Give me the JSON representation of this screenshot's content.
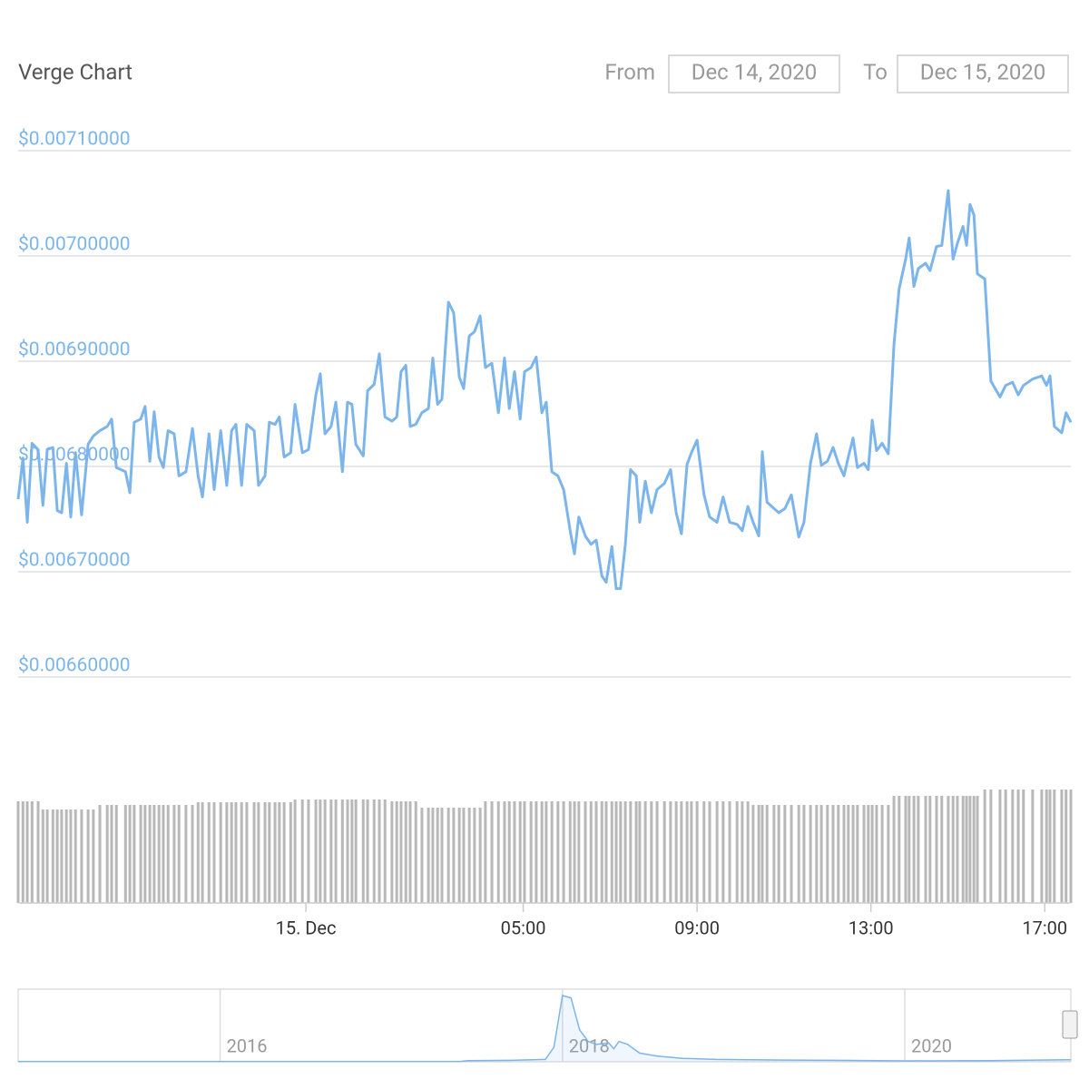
{
  "header": {
    "from_label": "From",
    "from_value": "Dec 14, 2020",
    "to_label": "To",
    "to_value": "Dec 15, 2020"
  },
  "chart_data": [
    {
      "type": "line",
      "title": "Verge Chart",
      "color": "#7cb5ec",
      "volume_color": "#b8b8b8",
      "grid": true,
      "x": [
        -6.62,
        -6.51,
        -6.41,
        -6.3,
        -6.16,
        -6.05,
        -5.95,
        -5.82,
        -5.72,
        -5.62,
        -5.51,
        -5.41,
        -5.3,
        -5.16,
        -5.01,
        -4.89,
        -4.74,
        -4.57,
        -4.47,
        -4.36,
        -4.15,
        -4.05,
        -3.95,
        -3.8,
        -3.7,
        -3.59,
        -3.49,
        -3.38,
        -3.28,
        -3.17,
        -3.03,
        -2.92,
        -2.76,
        -2.61,
        -2.48,
        -2.38,
        -2.23,
        -2.11,
        -1.96,
        -1.82,
        -1.71,
        -1.61,
        -1.48,
        -1.36,
        -1.19,
        -1.09,
        -0.94,
        -0.84,
        -0.71,
        -0.61,
        -0.5,
        -0.35,
        -0.25,
        -0.08,
        0.06,
        0.23,
        0.33,
        0.44,
        0.58,
        0.69,
        0.84,
        0.96,
        1.06,
        1.15,
        1.32,
        1.42,
        1.57,
        1.69,
        1.82,
        1.98,
        2.09,
        2.19,
        2.3,
        2.4,
        2.53,
        2.67,
        2.82,
        2.92,
        3.03,
        3.13,
        3.28,
        3.4,
        3.53,
        3.63,
        3.76,
        3.88,
        4.01,
        4.13,
        4.28,
        4.43,
        4.57,
        4.68,
        4.8,
        4.93,
        5.03,
        5.18,
        5.3,
        5.43,
        5.53,
        5.66,
        5.8,
        5.93,
        6.08,
        6.18,
        6.28,
        6.43,
        6.56,
        6.68,
        6.81,
        6.91,
        7.04,
        7.14,
        7.24,
        7.35,
        7.47,
        7.6,
        7.68,
        7.81,
        7.95,
        8.08,
        8.25,
        8.39,
        8.52,
        8.64,
        8.77,
        8.87,
        9.0,
        9.16,
        9.29,
        9.46,
        9.6,
        9.75,
        9.92,
        10.04,
        10.17,
        10.29,
        10.42,
        10.5,
        10.61,
        10.77,
        10.88,
        11.02,
        11.17,
        11.34,
        11.46,
        11.61,
        11.75,
        11.86,
        12.0,
        12.13,
        12.25,
        12.38,
        12.48,
        12.59,
        12.69,
        12.84,
        12.94,
        13.03,
        13.13,
        13.26,
        13.4,
        13.53,
        13.65,
        13.8,
        13.88,
        13.99,
        14.09,
        14.26,
        14.36,
        14.51,
        14.63,
        14.78,
        14.89,
        14.99,
        15.12,
        15.2,
        15.28,
        15.37,
        15.45,
        15.62,
        15.76,
        15.97,
        16.1,
        16.26,
        16.39,
        16.51,
        16.72,
        16.93,
        17.04,
        17.12,
        17.22,
        17.39,
        17.49,
        17.6
      ],
      "values": [
        0.006769,
        0.006808,
        0.006747,
        0.006822,
        0.006816,
        0.006763,
        0.006816,
        0.006818,
        0.006758,
        0.006756,
        0.006803,
        0.006752,
        0.006813,
        0.006754,
        0.006821,
        0.006829,
        0.006834,
        0.006838,
        0.006845,
        0.006799,
        0.006795,
        0.006775,
        0.006842,
        0.006845,
        0.006857,
        0.006805,
        0.006852,
        0.006809,
        0.006799,
        0.006834,
        0.006831,
        0.006791,
        0.006795,
        0.006836,
        0.006791,
        0.006771,
        0.006831,
        0.006778,
        0.006834,
        0.006782,
        0.006834,
        0.00684,
        0.006782,
        0.00684,
        0.006834,
        0.006782,
        0.006791,
        0.006842,
        0.00684,
        0.006847,
        0.006809,
        0.006813,
        0.006859,
        0.006813,
        0.006816,
        0.006868,
        0.006888,
        0.006831,
        0.006838,
        0.006861,
        0.006795,
        0.006861,
        0.006859,
        0.006821,
        0.00681,
        0.006872,
        0.006878,
        0.006907,
        0.006847,
        0.006843,
        0.006847,
        0.00689,
        0.006896,
        0.006838,
        0.00684,
        0.006851,
        0.006855,
        0.006903,
        0.006859,
        0.006864,
        0.006956,
        0.006946,
        0.006885,
        0.006874,
        0.006924,
        0.006928,
        0.006943,
        0.006894,
        0.006898,
        0.006851,
        0.006903,
        0.006855,
        0.00689,
        0.006845,
        0.00689,
        0.006894,
        0.006904,
        0.006851,
        0.006861,
        0.006795,
        0.006791,
        0.006778,
        0.006739,
        0.006717,
        0.006752,
        0.006734,
        0.006726,
        0.00673,
        0.006696,
        0.00669,
        0.006724,
        0.006684,
        0.006684,
        0.006726,
        0.006797,
        0.006791,
        0.006747,
        0.006786,
        0.006756,
        0.006778,
        0.006784,
        0.006797,
        0.006756,
        0.006736,
        0.006802,
        0.006813,
        0.006825,
        0.006773,
        0.006752,
        0.006747,
        0.006771,
        0.006747,
        0.006745,
        0.006739,
        0.006762,
        0.006747,
        0.006734,
        0.006814,
        0.006766,
        0.00676,
        0.006756,
        0.00676,
        0.006773,
        0.006733,
        0.006747,
        0.006803,
        0.006831,
        0.006801,
        0.006805,
        0.006818,
        0.006803,
        0.006791,
        0.006809,
        0.006827,
        0.006799,
        0.006803,
        0.006797,
        0.006844,
        0.006815,
        0.006822,
        0.006812,
        0.006916,
        0.006969,
        0.006997,
        0.007017,
        0.006971,
        0.006988,
        0.006993,
        0.006986,
        0.007009,
        0.00701,
        0.007062,
        0.006997,
        0.007012,
        0.007028,
        0.00701,
        0.007049,
        0.007039,
        0.006983,
        0.006978,
        0.006881,
        0.006866,
        0.006877,
        0.00688,
        0.006868,
        0.006877,
        0.006883,
        0.006886,
        0.006877,
        0.006886,
        0.006838,
        0.006832,
        0.006851,
        0.006842
      ],
      "volume": [
        112,
        112,
        112,
        112,
        112,
        103,
        103,
        103,
        103,
        103,
        103,
        103,
        103,
        103,
        103,
        103,
        108,
        108,
        108,
        108,
        108,
        108,
        108,
        108,
        108,
        108,
        108,
        108,
        108,
        108,
        108,
        108,
        108,
        108,
        111,
        111,
        111,
        111,
        111,
        111,
        111,
        111,
        111,
        111,
        111,
        111,
        111,
        111,
        111,
        111,
        111,
        111,
        114,
        114,
        114,
        114,
        114,
        114,
        114,
        114,
        114,
        114,
        114,
        114,
        114,
        114,
        114,
        114,
        114,
        112,
        112,
        112,
        112,
        112,
        112,
        105,
        105,
        105,
        105,
        105,
        105,
        105,
        105,
        105,
        105,
        105,
        105,
        112,
        112,
        112,
        112,
        112,
        112,
        112,
        112,
        112,
        112,
        112,
        112,
        112,
        112,
        112,
        112,
        112,
        112,
        112,
        112,
        112,
        112,
        112,
        112,
        112,
        112,
        112,
        112,
        112,
        112,
        112,
        112,
        112,
        112,
        112,
        112,
        112,
        112,
        112,
        112,
        112,
        112,
        112,
        112,
        112,
        112,
        112,
        112,
        108,
        108,
        108,
        108,
        108,
        108,
        108,
        108,
        108,
        108,
        108,
        108,
        108,
        108,
        108,
        108,
        108,
        108,
        108,
        108,
        108,
        108,
        108,
        108,
        108,
        108,
        118,
        118,
        118,
        118,
        118,
        118,
        118,
        118,
        118,
        118,
        118,
        118,
        118,
        118,
        118,
        118,
        118,
        118,
        125,
        125,
        125,
        125,
        125,
        125,
        125,
        125,
        125,
        125,
        125,
        125,
        125,
        125,
        125
      ],
      "xlim": [
        -6.62,
        17.6
      ],
      "xticks": [
        {
          "value": 0,
          "label": "15. Dec"
        },
        {
          "value": 5,
          "label": "05:00"
        },
        {
          "value": 9,
          "label": "09:00"
        },
        {
          "value": 13,
          "label": "13:00"
        },
        {
          "value": 17,
          "label": "17:00"
        }
      ],
      "ylim": [
        0.0066,
        0.0071
      ],
      "yticks": [
        {
          "value": 0.0066,
          "label": "$0.00660000"
        },
        {
          "value": 0.0067,
          "label": "$0.00670000"
        },
        {
          "value": 0.0068,
          "label": "$0.00680000"
        },
        {
          "value": 0.0069,
          "label": "$0.00690000"
        },
        {
          "value": 0.007,
          "label": "$0.00700000"
        },
        {
          "value": 0.0071,
          "label": "$0.00710000"
        }
      ]
    },
    {
      "type": "area",
      "color": "#7cb5ec",
      "x": [
        2014.82,
        2017.4,
        2017.45,
        2017.7,
        2017.9,
        2017.95,
        2018.0,
        2018.05,
        2018.1,
        2018.15,
        2018.2,
        2018.27,
        2018.3,
        2018.33,
        2018.38,
        2018.45,
        2018.55,
        2018.7,
        2018.9,
        2019.3,
        2019.6,
        2020.0,
        2020.5,
        2020.97
      ],
      "values": [
        0.0005,
        0.001,
        0.004,
        0.005,
        0.008,
        0.05,
        0.228,
        0.22,
        0.11,
        0.07,
        0.06,
        0.065,
        0.045,
        0.07,
        0.06,
        0.03,
        0.02,
        0.012,
        0.008,
        0.006,
        0.005,
        0.003,
        0.004,
        0.007
      ],
      "xlim": [
        2014.82,
        2020.97
      ],
      "ylim": [
        0,
        0.25
      ],
      "xticks": [
        2016,
        2018,
        2020
      ]
    }
  ]
}
